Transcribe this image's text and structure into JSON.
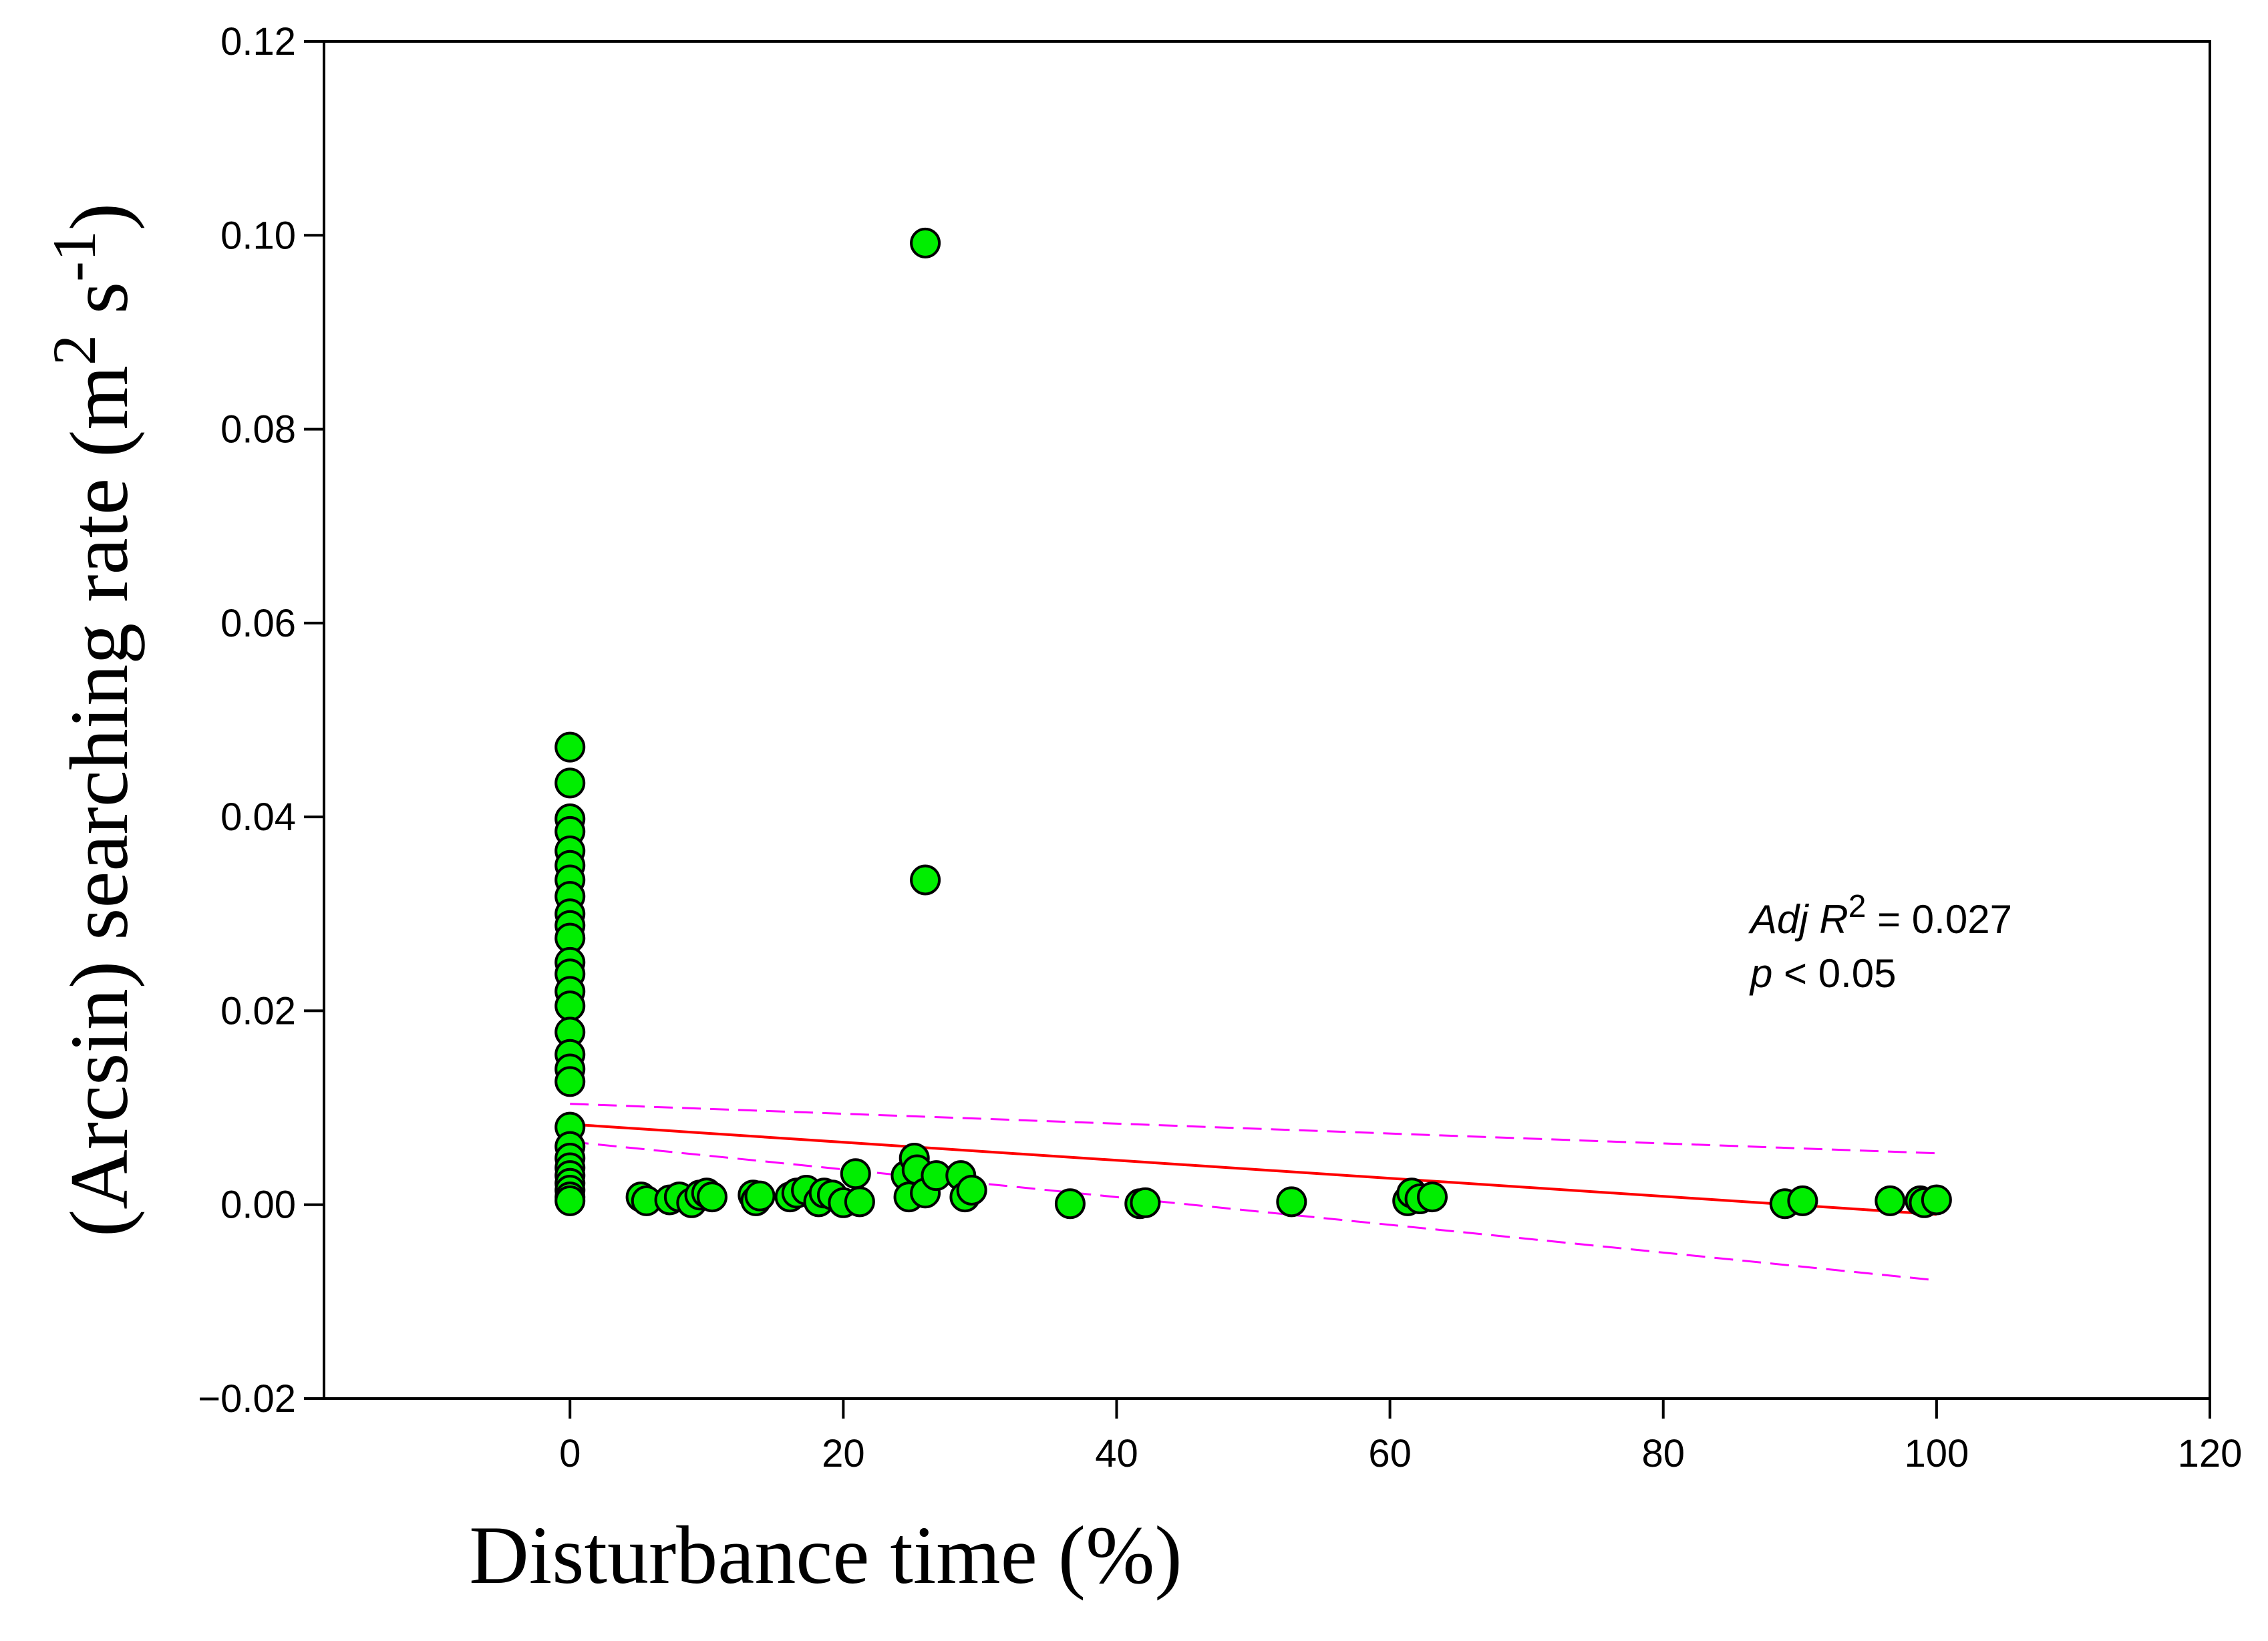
{
  "chart_data": {
    "type": "scatter",
    "title": "",
    "xlabel": "Disturbance time (%)",
    "ylabel": {
      "prefix": "(Arcsin) searching rate (m",
      "sup1": "2",
      "middle": " s",
      "sup2": "-1",
      "suffix": ")"
    },
    "xlim": [
      -18,
      120
    ],
    "ylim": [
      -0.02,
      0.12
    ],
    "x_ticks": [
      0,
      20,
      40,
      60,
      80,
      100,
      120
    ],
    "x_tick_labels": [
      "0",
      "20",
      "40",
      "60",
      "80",
      "100",
      "120"
    ],
    "y_ticks": [
      -0.02,
      0.0,
      0.02,
      0.04,
      0.06,
      0.08,
      0.1,
      0.12
    ],
    "y_tick_labels": [
      "−0.02",
      "0.00",
      "0.02",
      "0.04",
      "0.06",
      "0.08",
      "0.10",
      "0.12"
    ],
    "grid": false,
    "points": [
      [
        0,
        0.0472
      ],
      [
        0,
        0.0435
      ],
      [
        0,
        0.0398
      ],
      [
        0,
        0.0385
      ],
      [
        0,
        0.0365
      ],
      [
        0,
        0.035
      ],
      [
        0,
        0.0335
      ],
      [
        0,
        0.0318
      ],
      [
        0,
        0.03
      ],
      [
        0,
        0.0288
      ],
      [
        0,
        0.0275
      ],
      [
        0,
        0.025
      ],
      [
        0,
        0.0238
      ],
      [
        0,
        0.022
      ],
      [
        0,
        0.0205
      ],
      [
        0,
        0.0178
      ],
      [
        0,
        0.0155
      ],
      [
        0,
        0.014
      ],
      [
        0,
        0.0127
      ],
      [
        0,
        0.008
      ],
      [
        0,
        0.006
      ],
      [
        0,
        0.0048
      ],
      [
        0,
        0.0038
      ],
      [
        0,
        0.003
      ],
      [
        0,
        0.0022
      ],
      [
        0,
        0.0015
      ],
      [
        0,
        0.0008
      ],
      [
        0,
        0.0004
      ],
      [
        5.2,
        0.0008
      ],
      [
        5.6,
        0.0004
      ],
      [
        7.3,
        0.0005
      ],
      [
        8.0,
        0.0008
      ],
      [
        8.9,
        0.0002
      ],
      [
        9.5,
        0.001
      ],
      [
        10.0,
        0.0012
      ],
      [
        10.4,
        0.0008
      ],
      [
        13.4,
        0.001
      ],
      [
        13.6,
        0.0004
      ],
      [
        13.9,
        0.0009
      ],
      [
        16.1,
        0.0008
      ],
      [
        16.6,
        0.0012
      ],
      [
        17.3,
        0.0015
      ],
      [
        18.2,
        0.0003
      ],
      [
        18.6,
        0.0012
      ],
      [
        19.2,
        0.001
      ],
      [
        20.0,
        0.0002
      ],
      [
        20.9,
        0.0032
      ],
      [
        21.2,
        0.0003
      ],
      [
        24.6,
        0.003
      ],
      [
        24.8,
        0.0008
      ],
      [
        25.2,
        0.0048
      ],
      [
        25.4,
        0.0036
      ],
      [
        26.0,
        0.0012
      ],
      [
        26.8,
        0.003
      ],
      [
        26.0,
        0.0992
      ],
      [
        26.0,
        0.0335
      ],
      [
        28.6,
        0.003
      ],
      [
        28.9,
        0.0008
      ],
      [
        29.4,
        0.0015
      ],
      [
        36.6,
        0.0001
      ],
      [
        41.7,
        0.0001
      ],
      [
        42.1,
        0.0002
      ],
      [
        52.8,
        0.0003
      ],
      [
        61.3,
        0.0004
      ],
      [
        61.6,
        0.0012
      ],
      [
        62.2,
        0.0006
      ],
      [
        63.1,
        0.0008
      ],
      [
        88.9,
        0.0001
      ],
      [
        90.2,
        0.0004
      ],
      [
        96.6,
        0.0004
      ],
      [
        98.8,
        0.0004
      ],
      [
        99.1,
        0.0002
      ],
      [
        100,
        0.0005
      ]
    ],
    "regression": {
      "x": [
        0,
        100
      ],
      "y": [
        0.0083,
        -0.001
      ],
      "color": "#ff0000"
    },
    "confidence_upper": {
      "x": [
        0,
        100
      ],
      "y": [
        0.0104,
        0.0053
      ],
      "color": "#ff00ff"
    },
    "confidence_lower": {
      "x": [
        0,
        100
      ],
      "y": [
        0.0065,
        -0.0078
      ],
      "color": "#ff00ff"
    },
    "marker_color": "#00ee00",
    "annotation": {
      "line1_italic": "Adj R",
      "line1_sup": "2",
      "line1_rest": " = 0.027",
      "line2_italic": "p",
      "line2_rest": " < 0.05"
    }
  }
}
